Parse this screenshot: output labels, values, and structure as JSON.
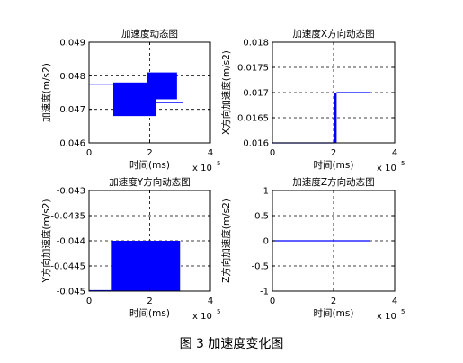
{
  "caption": "图 3  加速度变化图",
  "chart_data": [
    {
      "type": "line",
      "title": "加速度动态图",
      "xlabel": "时间(ms)",
      "ylabel": "加速度(m/s2)",
      "xlim": [
        0,
        4
      ],
      "ylim": [
        0.046,
        0.049
      ],
      "x_exponent": "x 10",
      "x_exponent_power": "5",
      "xticks": [
        "0",
        "2",
        "4"
      ],
      "yticks": [
        "0.046",
        "0.047",
        "0.048",
        "0.049"
      ],
      "grid": true,
      "color": "#0000ff",
      "lines": [
        {
          "x": [
            0.0,
            0.8
          ],
          "y": [
            0.04775,
            0.04775
          ]
        },
        {
          "x": [
            2.0,
            3.1
          ],
          "y": [
            0.0472,
            0.0472
          ]
        }
      ],
      "bands": [
        {
          "x": [
            0.8,
            2.2
          ],
          "y": [
            0.0468,
            0.04775
          ]
        },
        {
          "x": [
            0.8,
            1.9
          ],
          "y": [
            0.0477,
            0.0478
          ]
        },
        {
          "x": [
            1.9,
            2.9
          ],
          "y": [
            0.0473,
            0.0481
          ]
        }
      ]
    },
    {
      "type": "line",
      "title": "加速度X方向动态图",
      "xlabel": "时间(ms)",
      "ylabel": "X方向加速度(m/s2)",
      "xlim": [
        0,
        4
      ],
      "ylim": [
        0.016,
        0.018
      ],
      "x_exponent": "x 10",
      "x_exponent_power": "5",
      "xticks": [
        "0",
        "2",
        "4"
      ],
      "yticks": [
        "0.016",
        "0.0165",
        "0.017",
        "0.0175",
        "0.018"
      ],
      "grid": true,
      "color": "#0000ff",
      "lines": [
        {
          "x": [
            0.0,
            2.0
          ],
          "y": [
            0.016,
            0.016
          ]
        },
        {
          "x": [
            2.1,
            3.2
          ],
          "y": [
            0.017,
            0.017
          ]
        }
      ],
      "bands": [
        {
          "x": [
            2.0,
            2.1
          ],
          "y": [
            0.016,
            0.017
          ]
        }
      ]
    },
    {
      "type": "line",
      "title": "加速度Y方向动态图",
      "xlabel": "时间(ms)",
      "ylabel": "Y方向加速度(m/s2)",
      "xlim": [
        0,
        4
      ],
      "ylim": [
        -0.045,
        -0.043
      ],
      "x_exponent": "x 10",
      "x_exponent_power": "5",
      "xticks": [
        "0",
        "2",
        "4"
      ],
      "yticks": [
        "-0.045",
        "-0.0445",
        "-0.044",
        "-0.0435",
        "-0.043"
      ],
      "grid": true,
      "color": "#0000ff",
      "lines": [
        {
          "x": [
            0.0,
            0.75
          ],
          "y": [
            -0.04499,
            -0.04499
          ]
        }
      ],
      "bands": [
        {
          "x": [
            0.75,
            3.0
          ],
          "y": [
            -0.045,
            -0.044
          ]
        }
      ]
    },
    {
      "type": "line",
      "title": "加速度Z方向动态图",
      "xlabel": "时间(ms)",
      "ylabel": "Z方向加速度(m/s2)",
      "xlim": [
        0,
        4
      ],
      "ylim": [
        -1,
        1
      ],
      "x_exponent": "x 10",
      "x_exponent_power": "5",
      "xticks": [
        "0",
        "2",
        "4"
      ],
      "yticks": [
        "-1",
        "-0.5",
        "0",
        "0.5",
        "1"
      ],
      "grid": true,
      "color": "#0000ff",
      "lines": [
        {
          "x": [
            0.0,
            3.2
          ],
          "y": [
            0,
            0
          ]
        }
      ],
      "bands": []
    }
  ]
}
